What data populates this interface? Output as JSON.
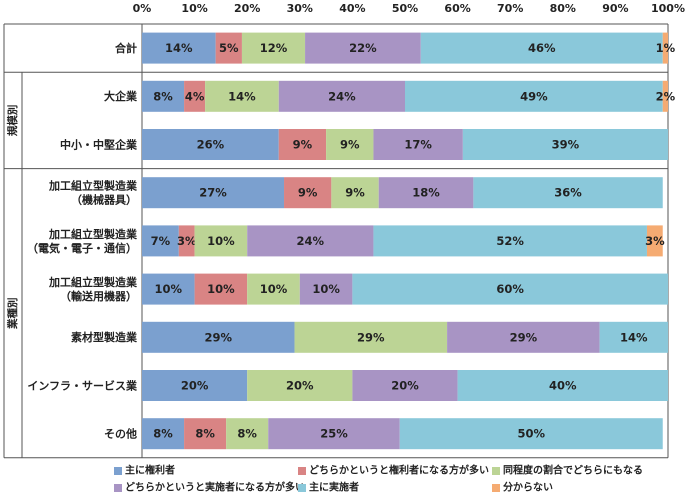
{
  "chart_data": {
    "type": "bar",
    "orientation": "horizontal",
    "stacked": true,
    "x_ticks": [
      "0%",
      "10%",
      "20%",
      "30%",
      "40%",
      "50%",
      "60%",
      "70%",
      "80%",
      "90%",
      "100%"
    ],
    "xlim": [
      0,
      100
    ],
    "grid": false,
    "legend_position": "bottom",
    "categories": [
      "合計",
      "大企業",
      "中小・中堅企業",
      "加工組立型製造業\n（機械器具）",
      "加工組立型製造業\n（電気・電子・通信）",
      "加工組立型製造業\n（輸送用機器）",
      "素材型製造業",
      "インフラ・サービス業",
      "その他"
    ],
    "groups": [
      {
        "label": "規模別",
        "start": 1,
        "end": 2
      },
      {
        "label": "業種別",
        "start": 3,
        "end": 8
      }
    ],
    "series": [
      {
        "name": "主に権利者",
        "color": "#7ba0cf",
        "values": [
          14,
          8,
          26,
          27,
          7,
          10,
          29,
          20,
          8
        ],
        "labels": [
          "14%",
          "8%",
          "26%",
          "27%",
          "7%",
          "10%",
          "29%",
          "20%",
          "8%"
        ]
      },
      {
        "name": "どちらかというと権利者になる方が多い",
        "color": "#d98484",
        "values": [
          5,
          4,
          9,
          9,
          3,
          10,
          0,
          0,
          8
        ],
        "labels": [
          "5%",
          "4%",
          "9%",
          "9%",
          "3%",
          "10%",
          "",
          "",
          "8%"
        ]
      },
      {
        "name": "同程度の割合でどちらにもなる",
        "color": "#bcd495",
        "values": [
          12,
          14,
          9,
          9,
          10,
          10,
          29,
          20,
          8
        ],
        "labels": [
          "12%",
          "14%",
          "9%",
          "9%",
          "10%",
          "10%",
          "29%",
          "20%",
          "8%"
        ]
      },
      {
        "name": "どちらかというと実施者になる方が多い",
        "color": "#a894c4",
        "values": [
          22,
          24,
          17,
          18,
          24,
          10,
          29,
          20,
          25
        ],
        "labels": [
          "22%",
          "24%",
          "17%",
          "18%",
          "24%",
          "10%",
          "29%",
          "20%",
          "25%"
        ]
      },
      {
        "name": "主に実施者",
        "color": "#8ac8da",
        "values": [
          46,
          49,
          39,
          36,
          52,
          60,
          14,
          40,
          50
        ],
        "labels": [
          "46%",
          "49%",
          "39%",
          "36%",
          "52%",
          "60%",
          "14%",
          "40%",
          "50%"
        ]
      },
      {
        "name": "分からない",
        "color": "#f5ab72",
        "values": [
          1,
          2,
          0,
          0,
          3,
          0,
          0,
          0,
          0
        ],
        "labels": [
          "1%",
          "2%",
          "",
          "",
          "3%",
          "",
          "",
          "",
          ""
        ]
      }
    ]
  }
}
